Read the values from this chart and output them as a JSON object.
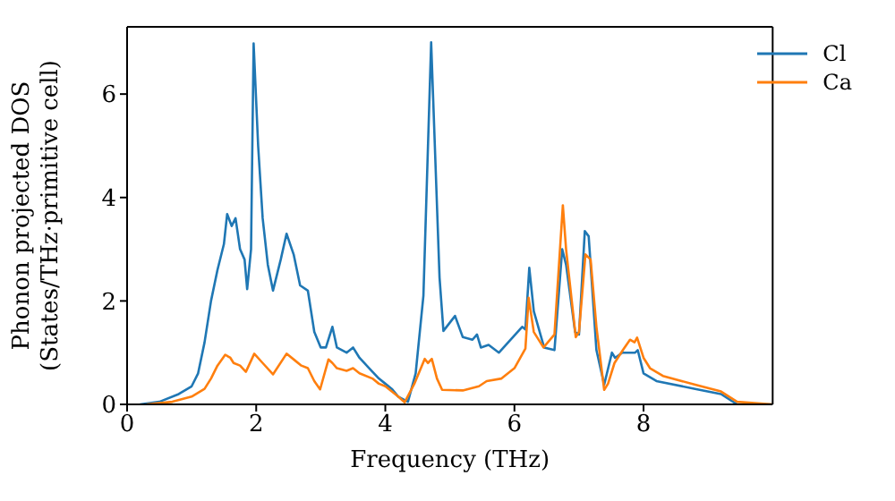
{
  "chart_data": {
    "type": "line",
    "xlabel": "Frequency (THz)",
    "ylabel": "Phonon projected DOS\n(States/THz·primitive cell)",
    "xlim": [
      0,
      10
    ],
    "ylim": [
      0,
      7.3
    ],
    "xticks": [
      0,
      2,
      4,
      6,
      8
    ],
    "yticks": [
      0,
      2,
      4,
      6
    ],
    "legend": "top right",
    "marker": "none",
    "line_style": "solid",
    "series": [
      {
        "name": "Cl",
        "color": "#1f77b4",
        "x": [
          0.2,
          0.5,
          0.8,
          1.0,
          1.1,
          1.2,
          1.3,
          1.4,
          1.5,
          1.55,
          1.62,
          1.68,
          1.75,
          1.82,
          1.86,
          1.92,
          1.96,
          2.03,
          2.1,
          2.18,
          2.26,
          2.38,
          2.47,
          2.58,
          2.68,
          2.8,
          2.9,
          3.0,
          3.08,
          3.18,
          3.25,
          3.4,
          3.5,
          3.6,
          3.75,
          3.9,
          4.0,
          4.1,
          4.2,
          4.35,
          4.47,
          4.59,
          4.71,
          4.84,
          4.9,
          5.08,
          5.2,
          5.35,
          5.42,
          5.48,
          5.6,
          5.76,
          6.12,
          6.17,
          6.23,
          6.3,
          6.46,
          6.62,
          6.74,
          6.8,
          6.94,
          7.0,
          7.09,
          7.15,
          7.27,
          7.39,
          7.51,
          7.56,
          7.67,
          7.87,
          7.91,
          8.0,
          8.2,
          8.8,
          9.2,
          9.45,
          10.0
        ],
        "values": [
          0,
          0.05,
          0.2,
          0.35,
          0.6,
          1.2,
          2.0,
          2.6,
          3.1,
          3.68,
          3.45,
          3.6,
          3.0,
          2.8,
          2.23,
          3.0,
          6.98,
          5.0,
          3.6,
          2.7,
          2.2,
          2.8,
          3.3,
          2.9,
          2.3,
          2.2,
          1.4,
          1.1,
          1.1,
          1.5,
          1.1,
          1.0,
          1.1,
          0.9,
          0.7,
          0.5,
          0.4,
          0.3,
          0.15,
          0.05,
          0.6,
          2.1,
          7.0,
          2.45,
          1.42,
          1.71,
          1.3,
          1.25,
          1.35,
          1.1,
          1.15,
          1.0,
          1.5,
          1.45,
          2.64,
          1.8,
          1.1,
          1.05,
          3.0,
          2.7,
          1.4,
          1.35,
          3.35,
          3.25,
          1.05,
          0.38,
          1.0,
          0.9,
          1.0,
          1.0,
          1.05,
          0.6,
          0.45,
          0.3,
          0.2,
          0,
          0
        ]
      },
      {
        "name": "Ca",
        "color": "#ff7f0e",
        "x": [
          0.3,
          0.7,
          1.0,
          1.2,
          1.3,
          1.4,
          1.52,
          1.6,
          1.65,
          1.75,
          1.84,
          1.97,
          2.1,
          2.26,
          2.47,
          2.6,
          2.7,
          2.8,
          2.9,
          2.99,
          3.12,
          3.18,
          3.25,
          3.4,
          3.5,
          3.6,
          3.8,
          3.9,
          4.0,
          4.1,
          4.2,
          4.3,
          4.45,
          4.61,
          4.66,
          4.72,
          4.8,
          4.88,
          5.2,
          5.45,
          5.57,
          5.8,
          6.0,
          6.17,
          6.22,
          6.3,
          6.45,
          6.62,
          6.75,
          6.8,
          6.95,
          7.0,
          7.1,
          7.18,
          7.27,
          7.39,
          7.45,
          7.55,
          7.68,
          7.79,
          7.86,
          7.9,
          8.0,
          8.1,
          8.3,
          8.8,
          9.2,
          9.45,
          10.0
        ],
        "values": [
          0,
          0.05,
          0.15,
          0.3,
          0.5,
          0.75,
          0.96,
          0.9,
          0.8,
          0.75,
          0.63,
          0.98,
          0.8,
          0.58,
          0.98,
          0.85,
          0.75,
          0.7,
          0.45,
          0.29,
          0.87,
          0.8,
          0.7,
          0.65,
          0.7,
          0.6,
          0.5,
          0.4,
          0.35,
          0.25,
          0.15,
          0.04,
          0.4,
          0.88,
          0.8,
          0.88,
          0.5,
          0.28,
          0.27,
          0.35,
          0.45,
          0.5,
          0.7,
          1.08,
          2.06,
          1.4,
          1.1,
          1.35,
          3.85,
          3.0,
          1.3,
          1.4,
          2.9,
          2.8,
          1.5,
          0.28,
          0.4,
          0.8,
          1.05,
          1.25,
          1.2,
          1.29,
          0.9,
          0.7,
          0.55,
          0.38,
          0.25,
          0.05,
          0
        ]
      }
    ]
  }
}
